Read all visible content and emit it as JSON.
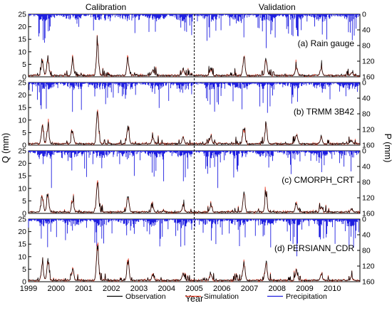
{
  "chart_data": {
    "type": "line",
    "figure_labels": {
      "left_section": "Calibration",
      "right_section": "Validation",
      "xlabel": "Year",
      "ylabel_left": "Q (mm)",
      "ylabel_right": "P (mm)"
    },
    "x_ticks": [
      "1999",
      "2000",
      "2001",
      "2002",
      "2003",
      "2004",
      "2005",
      "2006",
      "2007",
      "2008",
      "2009",
      "2010"
    ],
    "xlim": [
      1999,
      2011
    ],
    "calibration_validation_split": 2005,
    "q_axis": {
      "ylim": [
        0,
        25
      ],
      "ticks": [
        0,
        5,
        10,
        15,
        20,
        25
      ]
    },
    "p_axis": {
      "ylim": [
        0,
        160
      ],
      "ticks": [
        0,
        40,
        80,
        120,
        160
      ],
      "inverted": true
    },
    "panels": [
      {
        "label": "(a) Rain gauge",
        "q_peaks": [
          {
            "year": 1999.5,
            "q": 6.5
          },
          {
            "year": 1999.7,
            "q": 8.0
          },
          {
            "year": 2000.6,
            "q": 5.5
          },
          {
            "year": 2001.5,
            "q": 14.0
          },
          {
            "year": 2002.6,
            "q": 7.5
          },
          {
            "year": 2003.5,
            "q": 2.5
          },
          {
            "year": 2004.6,
            "q": 3.0
          },
          {
            "year": 2005.6,
            "q": 3.0
          },
          {
            "year": 2006.8,
            "q": 8.5
          },
          {
            "year": 2007.6,
            "q": 7.5
          },
          {
            "year": 2008.7,
            "q": 4.0
          },
          {
            "year": 2009.6,
            "q": 3.5
          },
          {
            "year": 2010.7,
            "q": 1.5
          }
        ]
      },
      {
        "label": "(b) TRMM 3B42",
        "q_peaks": [
          {
            "year": 1999.5,
            "q": 7.5
          },
          {
            "year": 1999.7,
            "q": 8.5
          },
          {
            "year": 2000.6,
            "q": 5.5
          },
          {
            "year": 2001.5,
            "q": 14.5
          },
          {
            "year": 2002.6,
            "q": 7.5
          },
          {
            "year": 2003.5,
            "q": 2.5
          },
          {
            "year": 2004.6,
            "q": 3.0
          },
          {
            "year": 2005.6,
            "q": 3.0
          },
          {
            "year": 2006.8,
            "q": 8.5
          },
          {
            "year": 2007.6,
            "q": 8.0
          },
          {
            "year": 2008.7,
            "q": 4.5
          },
          {
            "year": 2009.6,
            "q": 2.5
          },
          {
            "year": 2010.7,
            "q": 1.5
          }
        ]
      },
      {
        "label": "(c) CMORPH_CRT",
        "q_peaks": [
          {
            "year": 1999.5,
            "q": 7.5
          },
          {
            "year": 1999.7,
            "q": 8.0
          },
          {
            "year": 2000.6,
            "q": 5.5
          },
          {
            "year": 2001.5,
            "q": 14.0
          },
          {
            "year": 2002.6,
            "q": 8.0
          },
          {
            "year": 2003.5,
            "q": 2.5
          },
          {
            "year": 2004.6,
            "q": 3.0
          },
          {
            "year": 2005.6,
            "q": 3.0
          },
          {
            "year": 2006.8,
            "q": 8.5
          },
          {
            "year": 2007.6,
            "q": 8.0
          },
          {
            "year": 2008.7,
            "q": 4.0
          },
          {
            "year": 2009.6,
            "q": 2.5
          },
          {
            "year": 2010.7,
            "q": 1.5
          }
        ]
      },
      {
        "label": "(d) PERSIANN_CDR",
        "q_peaks": [
          {
            "year": 1999.5,
            "q": 7.5
          },
          {
            "year": 1999.7,
            "q": 8.5
          },
          {
            "year": 2000.6,
            "q": 5.5
          },
          {
            "year": 2001.5,
            "q": 14.5
          },
          {
            "year": 2002.6,
            "q": 9.0
          },
          {
            "year": 2003.5,
            "q": 2.5
          },
          {
            "year": 2004.6,
            "q": 3.0
          },
          {
            "year": 2005.6,
            "q": 3.0
          },
          {
            "year": 2006.8,
            "q": 8.5
          },
          {
            "year": 2007.6,
            "q": 8.0
          },
          {
            "year": 2008.7,
            "q": 4.5
          },
          {
            "year": 2009.6,
            "q": 2.5
          },
          {
            "year": 2010.7,
            "q": 1.5
          }
        ]
      }
    ],
    "legend": {
      "placement": "bottom-center",
      "entries": [
        {
          "name": "Observation",
          "color": "#000000"
        },
        {
          "name": "Simulation",
          "color": "#e8402a"
        },
        {
          "name": "Precipitation",
          "color": "#1f1fe0"
        }
      ]
    },
    "grid": false
  }
}
